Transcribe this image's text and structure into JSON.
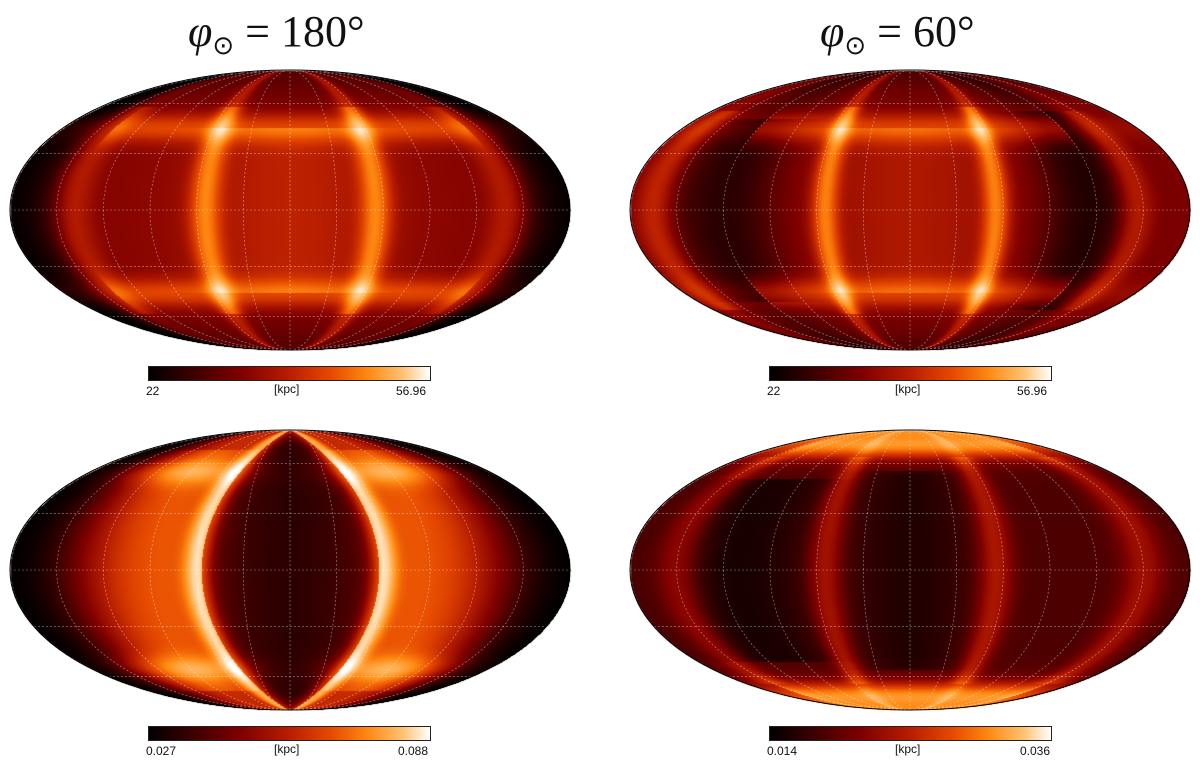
{
  "columns": [
    {
      "label_symbol": "φ",
      "label_subscript": "⊙",
      "label_value": "= 180°"
    },
    {
      "label_symbol": "φ",
      "label_subscript": "⊙",
      "label_value": "= 60°"
    }
  ],
  "colors": {
    "cmap": [
      "#000000",
      "#3a0000",
      "#800000",
      "#b81e00",
      "#e64a00",
      "#ff8a12",
      "#ffc070",
      "#ffffff"
    ],
    "graticule": "#ffffff",
    "outline": "#000000"
  },
  "chart_data": [
    {
      "type": "heatmap",
      "projection": "mollweide",
      "column": "φ⊙ = 180°",
      "row": "top",
      "colorbar": {
        "min_label": "22",
        "max_label": "56.96",
        "unit": "[kpc]",
        "min": 22,
        "max": 56.96
      },
      "grid": true,
      "graticule_longitudes_deg": [
        -180,
        -150,
        -120,
        -90,
        -60,
        -30,
        0,
        30,
        60,
        90,
        120,
        150,
        180
      ],
      "graticule_latitudes_deg": [
        -60,
        -30,
        0,
        30,
        60
      ]
    },
    {
      "type": "heatmap",
      "projection": "mollweide",
      "column": "φ⊙ = 60°",
      "row": "top",
      "colorbar": {
        "min_label": "22",
        "max_label": "56.96",
        "unit": "[kpc]",
        "min": 22,
        "max": 56.96
      },
      "grid": true,
      "graticule_longitudes_deg": [
        -180,
        -150,
        -120,
        -90,
        -60,
        -30,
        0,
        30,
        60,
        90,
        120,
        150,
        180
      ],
      "graticule_latitudes_deg": [
        -60,
        -30,
        0,
        30,
        60
      ]
    },
    {
      "type": "heatmap",
      "projection": "mollweide",
      "column": "φ⊙ = 180°",
      "row": "bottom",
      "colorbar": {
        "min_label": "0.027",
        "max_label": "0.088",
        "unit": "[kpc]",
        "min": 0.027,
        "max": 0.088
      },
      "grid": true,
      "graticule_longitudes_deg": [
        -180,
        -150,
        -120,
        -90,
        -60,
        -30,
        0,
        30,
        60,
        90,
        120,
        150,
        180
      ],
      "graticule_latitudes_deg": [
        -60,
        -30,
        0,
        30,
        60
      ]
    },
    {
      "type": "heatmap",
      "projection": "mollweide",
      "column": "φ⊙ = 60°",
      "row": "bottom",
      "colorbar": {
        "min_label": "0.014",
        "max_label": "0.036",
        "unit": "[kpc]",
        "min": 0.014,
        "max": 0.036
      },
      "grid": true,
      "graticule_longitudes_deg": [
        -180,
        -150,
        -120,
        -90,
        -60,
        -30,
        0,
        30,
        60,
        90,
        120,
        150,
        180
      ],
      "graticule_latitudes_deg": [
        -60,
        -30,
        0,
        30,
        60
      ]
    }
  ]
}
